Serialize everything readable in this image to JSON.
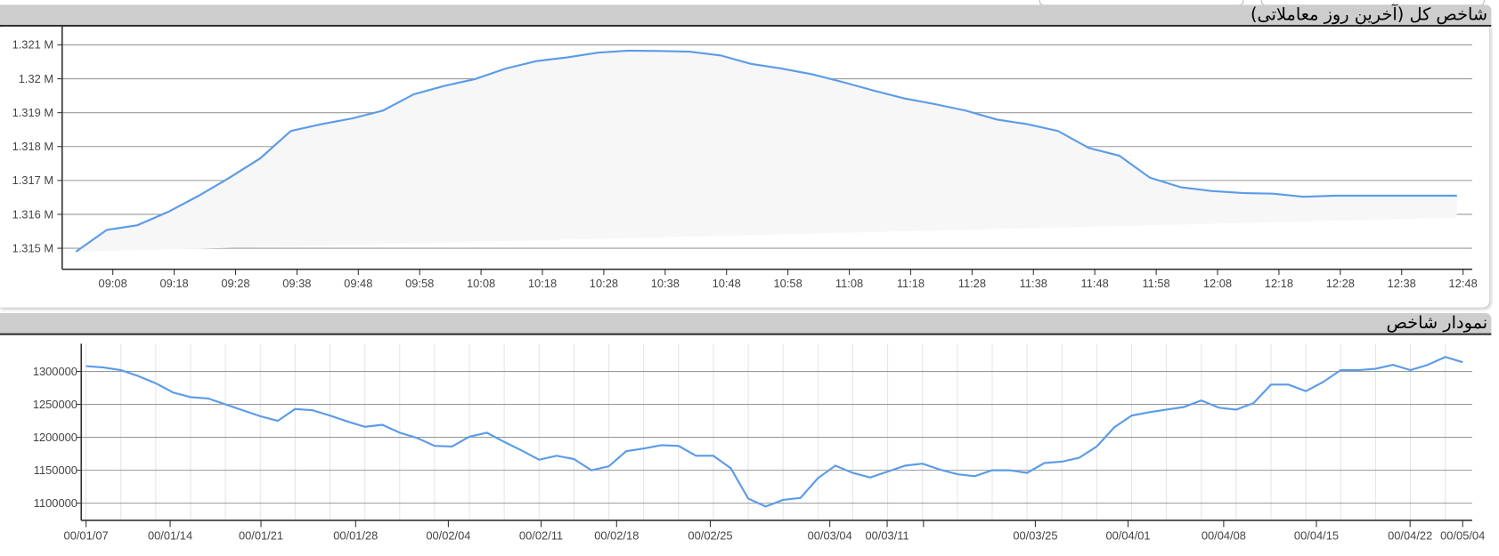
{
  "top_panel": {
    "title": "شاخص کل (آخرین روز معاملاتی)"
  },
  "bottom_panel": {
    "title": "نمودار شاخص"
  },
  "colors": {
    "line": "#5b9be8",
    "fill": "#f7f7f7",
    "header": "#cdcdcd",
    "grid": "#999999"
  },
  "chart_data": [
    {
      "type": "area",
      "title": "شاخص کل (آخرین روز معاملاتی)",
      "x_unit": "time",
      "ylim": [
        1314380,
        1321540
      ],
      "y_ticks": [
        1315000,
        1316000,
        1317000,
        1318000,
        1319000,
        1320000,
        1321000
      ],
      "y_tick_labels": [
        "1.315 M",
        "1.316 M",
        "1.317 M",
        "1.318 M",
        "1.319 M",
        "1.32 M",
        "1.321 M"
      ],
      "x_tick_labels": [
        "09:08",
        "09:18",
        "09:28",
        "09:38",
        "09:48",
        "09:58",
        "10:08",
        "10:18",
        "10:28",
        "10:38",
        "10:48",
        "10:58",
        "11:08",
        "11:18",
        "11:28",
        "11:38",
        "11:48",
        "11:58",
        "12:08",
        "12:18",
        "12:28",
        "12:38",
        "12:48"
      ],
      "x_start": "09:02",
      "x_step_minutes": 5,
      "values": [
        1314900,
        1315540,
        1315680,
        1316070,
        1316550,
        1317080,
        1317650,
        1318460,
        1318660,
        1318830,
        1319060,
        1319540,
        1319790,
        1319990,
        1320300,
        1320520,
        1320630,
        1320770,
        1320830,
        1320820,
        1320800,
        1320690,
        1320440,
        1320300,
        1320130,
        1319900,
        1319650,
        1319420,
        1319250,
        1319060,
        1318800,
        1318660,
        1318460,
        1317960,
        1317730,
        1317080,
        1316800,
        1316690,
        1316630,
        1316610,
        1316520,
        1316550,
        1316550,
        1316550,
        1316550,
        1316550
      ],
      "grid": true,
      "legend": "none"
    },
    {
      "type": "line",
      "title": "نمودار شاخص",
      "ylim": [
        1074000,
        1342000
      ],
      "y_ticks": [
        1100000,
        1150000,
        1200000,
        1250000,
        1300000
      ],
      "y_tick_labels": [
        "1100000",
        "1150000",
        "1200000",
        "1250000",
        "1300000"
      ],
      "x_tick_labels": [
        "00/01/07",
        "00/01/14",
        "00/01/21",
        "00/01/28",
        "00/02/04",
        "00/02/11",
        "00/02/18",
        "00/02/25",
        "00/03/04",
        "00/03/11",
        "",
        "00/03/25",
        "00/04/01",
        "00/04/08",
        "00/04/15",
        "00/04/22",
        "00/05/04"
      ],
      "values": [
        1308000,
        1306000,
        1302000,
        1293000,
        1282000,
        1268000,
        1261000,
        1259000,
        1250000,
        1241000,
        1232000,
        1225000,
        1243000,
        1241000,
        1233000,
        1224000,
        1216000,
        1219000,
        1207000,
        1199000,
        1187000,
        1186000,
        1201000,
        1207000,
        1193000,
        1180000,
        1166000,
        1172000,
        1167000,
        1150000,
        1156000,
        1179000,
        1183000,
        1188000,
        1187000,
        1172000,
        1172000,
        1153000,
        1107000,
        1095000,
        1105000,
        1108000,
        1138000,
        1157000,
        1146000,
        1139000,
        1148000,
        1157000,
        1160000,
        1151000,
        1144000,
        1141000,
        1150000,
        1150000,
        1146000,
        1161000,
        1163000,
        1169000,
        1186000,
        1215000,
        1233000,
        1238000,
        1242000,
        1246000,
        1256000,
        1245000,
        1242000,
        1252000,
        1280000,
        1280000,
        1270000,
        1284000,
        1302000,
        1302000,
        1304000,
        1310000,
        1302000,
        1310000,
        1322000,
        1314000
      ],
      "grid": true,
      "legend": "none"
    }
  ]
}
